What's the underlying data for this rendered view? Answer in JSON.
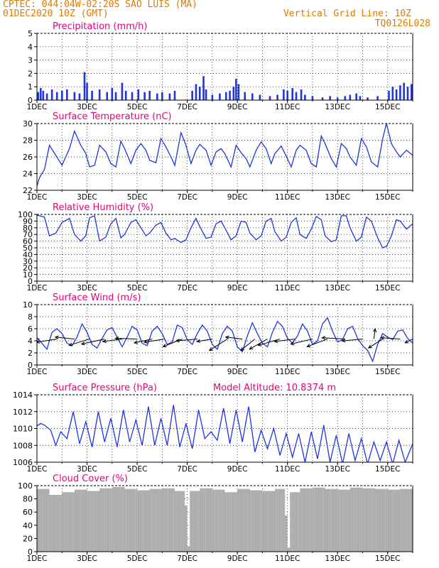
{
  "header": {
    "station_line": "CPTEC:   044:04W-02:20S   SAO LUIS (MA)",
    "date_line": "01DEC2020 10Z (GMT)",
    "grid_line": "Vertical Grid Line: 10Z",
    "code": "TQ0126L028"
  },
  "colors": {
    "header": "#e07b00",
    "title": "#e8007d",
    "line": "#1f35e0",
    "bar": "#1f35e0",
    "cloud": "#aaaaaa",
    "arrow": "#000000"
  },
  "chart_data": [
    {
      "type": "bar",
      "title": "Precipitation (mm/h)",
      "ylim": [
        0,
        5
      ],
      "yticks": [
        0,
        1,
        2,
        3,
        4,
        5
      ],
      "xticks": [
        "1DEC",
        "3DEC",
        "5DEC",
        "7DEC",
        "9DEC",
        "11DEC",
        "13DEC",
        "15DEC"
      ],
      "x_day_range": [
        1,
        16
      ],
      "grid": "dotted",
      "events": [
        {
          "day": 1.05,
          "value": 0.6
        },
        {
          "day": 1.15,
          "value": 0.9
        },
        {
          "day": 1.25,
          "value": 0.7
        },
        {
          "day": 1.4,
          "value": 0.5
        },
        {
          "day": 1.6,
          "value": 0.8
        },
        {
          "day": 1.8,
          "value": 0.6
        },
        {
          "day": 2.0,
          "value": 0.7
        },
        {
          "day": 2.2,
          "value": 0.8
        },
        {
          "day": 2.5,
          "value": 0.6
        },
        {
          "day": 2.7,
          "value": 0.5
        },
        {
          "day": 2.9,
          "value": 2.1
        },
        {
          "day": 3.0,
          "value": 1.3
        },
        {
          "day": 3.2,
          "value": 0.7
        },
        {
          "day": 3.5,
          "value": 0.8
        },
        {
          "day": 3.8,
          "value": 0.6
        },
        {
          "day": 4.0,
          "value": 0.9
        },
        {
          "day": 4.15,
          "value": 0.6
        },
        {
          "day": 4.4,
          "value": 1.3
        },
        {
          "day": 4.55,
          "value": 0.7
        },
        {
          "day": 4.8,
          "value": 0.6
        },
        {
          "day": 5.05,
          "value": 0.8
        },
        {
          "day": 5.3,
          "value": 0.6
        },
        {
          "day": 5.5,
          "value": 0.7
        },
        {
          "day": 5.8,
          "value": 0.5
        },
        {
          "day": 6.0,
          "value": 0.6
        },
        {
          "day": 6.3,
          "value": 0.5
        },
        {
          "day": 6.5,
          "value": 0.7
        },
        {
          "day": 7.2,
          "value": 0.7
        },
        {
          "day": 7.35,
          "value": 1.2
        },
        {
          "day": 7.5,
          "value": 1.0
        },
        {
          "day": 7.65,
          "value": 1.8
        },
        {
          "day": 7.75,
          "value": 0.8
        },
        {
          "day": 8.0,
          "value": 0.4
        },
        {
          "day": 8.3,
          "value": 0.5
        },
        {
          "day": 8.55,
          "value": 0.6
        },
        {
          "day": 8.7,
          "value": 0.7
        },
        {
          "day": 8.85,
          "value": 1.0
        },
        {
          "day": 8.95,
          "value": 1.6
        },
        {
          "day": 9.05,
          "value": 1.2
        },
        {
          "day": 9.3,
          "value": 0.6
        },
        {
          "day": 9.6,
          "value": 0.5
        },
        {
          "day": 9.9,
          "value": 0.4
        },
        {
          "day": 10.3,
          "value": 0.3
        },
        {
          "day": 10.6,
          "value": 0.4
        },
        {
          "day": 10.85,
          "value": 0.8
        },
        {
          "day": 11.0,
          "value": 0.7
        },
        {
          "day": 11.2,
          "value": 0.9
        },
        {
          "day": 11.35,
          "value": 0.6
        },
        {
          "day": 11.55,
          "value": 0.8
        },
        {
          "day": 11.7,
          "value": 0.4
        },
        {
          "day": 12.0,
          "value": 0.3
        },
        {
          "day": 12.4,
          "value": 0.2
        },
        {
          "day": 12.7,
          "value": 0.3
        },
        {
          "day": 13.0,
          "value": 0.2
        },
        {
          "day": 13.3,
          "value": 0.3
        },
        {
          "day": 13.5,
          "value": 0.4
        },
        {
          "day": 13.75,
          "value": 0.5
        },
        {
          "day": 13.9,
          "value": 0.3
        },
        {
          "day": 14.2,
          "value": 0.2
        },
        {
          "day": 14.6,
          "value": 0.3
        },
        {
          "day": 15.05,
          "value": 0.7
        },
        {
          "day": 15.2,
          "value": 1.0
        },
        {
          "day": 15.35,
          "value": 0.8
        },
        {
          "day": 15.5,
          "value": 1.1
        },
        {
          "day": 15.65,
          "value": 1.3
        },
        {
          "day": 15.8,
          "value": 1.0
        },
        {
          "day": 15.95,
          "value": 1.2
        }
      ]
    },
    {
      "type": "line",
      "title": "Surface Temperature (nC)",
      "ylim": [
        22,
        30
      ],
      "yticks": [
        22,
        24,
        26,
        28,
        30
      ],
      "xticks": [
        "1DEC",
        "3DEC",
        "5DEC",
        "7DEC",
        "9DEC",
        "11DEC",
        "13DEC",
        "15DEC"
      ],
      "x_day_range": [
        1,
        16
      ],
      "grid": "dotted",
      "days": [
        1.0,
        1.1,
        1.3,
        1.5,
        1.75,
        2.0,
        2.3,
        2.5,
        2.75,
        2.95,
        3.1,
        3.3,
        3.5,
        3.75,
        3.95,
        4.15,
        4.35,
        4.5,
        4.75,
        4.95,
        5.15,
        5.35,
        5.5,
        5.75,
        5.95,
        6.15,
        6.35,
        6.5,
        6.75,
        6.95,
        7.15,
        7.35,
        7.5,
        7.75,
        7.95,
        8.15,
        8.35,
        8.5,
        8.75,
        8.95,
        9.15,
        9.35,
        9.5,
        9.75,
        9.95,
        10.15,
        10.35,
        10.5,
        10.75,
        10.95,
        11.15,
        11.35,
        11.5,
        11.75,
        11.95,
        12.15,
        12.35,
        12.5,
        12.75,
        12.95,
        13.15,
        13.35,
        13.5,
        13.75,
        13.95,
        14.15,
        14.35,
        14.6,
        14.8,
        14.95,
        15.15,
        15.35,
        15.5,
        15.75,
        16.0
      ],
      "values": [
        22.5,
        23.5,
        24.5,
        27.4,
        26.2,
        25.0,
        27.0,
        29.1,
        27.4,
        26.4,
        24.8,
        25.0,
        27.4,
        26.6,
        25.2,
        24.8,
        27.9,
        27.0,
        25.2,
        26.8,
        27.6,
        26.8,
        25.6,
        25.3,
        28.2,
        27.2,
        26.0,
        25.0,
        28.9,
        27.4,
        25.2,
        26.8,
        27.5,
        26.8,
        25.0,
        26.6,
        27.0,
        26.4,
        24.8,
        27.4,
        26.5,
        25.8,
        24.8,
        26.8,
        27.8,
        27.0,
        25.2,
        26.4,
        27.3,
        26.1,
        24.8,
        26.8,
        27.4,
        26.8,
        25.2,
        24.8,
        28.5,
        27.6,
        25.8,
        24.8,
        27.6,
        27.0,
        26.0,
        25.0,
        28.2,
        27.2,
        25.4,
        24.8,
        28.2,
        30.0,
        27.6,
        26.6,
        26.0,
        26.8,
        26.2
      ]
    },
    {
      "type": "line",
      "title": "Relative Humidity (%)",
      "ylim": [
        0,
        100
      ],
      "yticks": [
        0,
        10,
        20,
        30,
        40,
        50,
        60,
        70,
        80,
        90,
        100
      ],
      "xticks": [
        "1DEC",
        "3DEC",
        "5DEC",
        "7DEC",
        "9DEC",
        "11DEC",
        "13DEC",
        "15DEC"
      ],
      "x_day_range": [
        1,
        16
      ],
      "grid": "dotted",
      "days": [
        1.0,
        1.3,
        1.5,
        1.75,
        2.0,
        2.3,
        2.5,
        2.75,
        2.95,
        3.1,
        3.3,
        3.5,
        3.75,
        3.95,
        4.15,
        4.35,
        4.5,
        4.75,
        4.95,
        5.15,
        5.35,
        5.5,
        5.75,
        5.95,
        6.15,
        6.35,
        6.5,
        6.75,
        6.95,
        7.15,
        7.35,
        7.5,
        7.75,
        7.95,
        8.15,
        8.35,
        8.5,
        8.75,
        8.95,
        9.15,
        9.35,
        9.5,
        9.75,
        9.95,
        10.15,
        10.35,
        10.5,
        10.75,
        10.95,
        11.15,
        11.35,
        11.5,
        11.75,
        11.95,
        12.15,
        12.35,
        12.5,
        12.75,
        12.95,
        13.15,
        13.35,
        13.5,
        13.75,
        13.95,
        14.15,
        14.35,
        14.6,
        14.8,
        14.95,
        15.15,
        15.35,
        15.5,
        15.75,
        16.0
      ],
      "values": [
        99,
        96,
        68,
        72,
        88,
        94,
        70,
        60,
        68,
        95,
        98,
        60,
        66,
        86,
        94,
        65,
        70,
        88,
        92,
        80,
        68,
        72,
        84,
        88,
        72,
        62,
        64,
        58,
        62,
        80,
        94,
        82,
        64,
        66,
        86,
        90,
        80,
        62,
        68,
        90,
        88,
        72,
        62,
        68,
        90,
        94,
        74,
        60,
        66,
        88,
        95,
        70,
        64,
        78,
        97,
        92,
        68,
        59,
        62,
        98,
        98,
        80,
        60,
        66,
        96,
        90,
        65,
        50,
        52,
        68,
        92,
        90,
        78,
        86
      ]
    },
    {
      "type": "line",
      "title": "Surface Wind (m/s)",
      "ylim": [
        0,
        10
      ],
      "yticks": [
        0,
        2,
        4,
        6,
        8,
        10
      ],
      "xticks": [
        "1DEC",
        "3DEC",
        "5DEC",
        "7DEC",
        "9DEC",
        "11DEC",
        "13DEC",
        "15DEC"
      ],
      "x_day_range": [
        1,
        16
      ],
      "grid": "dotted",
      "days": [
        1.0,
        1.2,
        1.4,
        1.6,
        1.8,
        2.0,
        2.2,
        2.4,
        2.6,
        2.8,
        3.0,
        3.2,
        3.4,
        3.6,
        3.8,
        4.0,
        4.2,
        4.4,
        4.6,
        4.8,
        5.0,
        5.2,
        5.4,
        5.6,
        5.8,
        6.0,
        6.2,
        6.4,
        6.6,
        6.8,
        7.0,
        7.2,
        7.4,
        7.6,
        7.8,
        8.0,
        8.2,
        8.4,
        8.6,
        8.8,
        9.0,
        9.2,
        9.4,
        9.6,
        9.8,
        10.0,
        10.2,
        10.4,
        10.6,
        10.8,
        11.0,
        11.2,
        11.4,
        11.6,
        11.8,
        12.0,
        12.2,
        12.4,
        12.6,
        12.8,
        13.0,
        13.2,
        13.4,
        13.6,
        13.8,
        14.0,
        14.2,
        14.4,
        14.6,
        14.8,
        15.0,
        15.2,
        15.4,
        15.6,
        15.8,
        16.0
      ],
      "values": [
        4.5,
        3.6,
        2.6,
        5.4,
        6.0,
        5.2,
        3.6,
        3.2,
        4.6,
        6.8,
        5.4,
        3.4,
        2.8,
        4.4,
        5.8,
        6.2,
        4.6,
        3.0,
        4.6,
        6.4,
        5.8,
        3.6,
        3.2,
        5.6,
        6.4,
        5.2,
        3.4,
        3.8,
        6.6,
        6.2,
        4.2,
        3.4,
        5.2,
        6.6,
        5.6,
        3.4,
        2.6,
        5.2,
        6.4,
        5.6,
        3.0,
        2.2,
        4.8,
        7.0,
        5.2,
        3.6,
        3.0,
        5.4,
        7.2,
        6.4,
        4.4,
        3.6,
        4.8,
        6.8,
        5.6,
        3.4,
        4.0,
        6.8,
        7.8,
        5.6,
        3.8,
        4.2,
        6.0,
        6.4,
        4.4,
        3.2,
        2.4,
        0.6,
        3.4,
        5.2,
        4.6,
        4.2,
        5.6,
        5.8,
        4.4,
        3.6
      ],
      "vectors": [
        {
          "day": 1.1,
          "u": -3.5,
          "v": 0.2
        },
        {
          "day": 1.8,
          "u": -3.2,
          "v": -0.5
        },
        {
          "day": 2.5,
          "u": -3.0,
          "v": 0.3
        },
        {
          "day": 3.1,
          "u": -3.2,
          "v": -1.0
        },
        {
          "day": 3.7,
          "u": -3.6,
          "v": -0.8
        },
        {
          "day": 4.4,
          "u": -3.0,
          "v": -0.4
        },
        {
          "day": 5.0,
          "u": -3.4,
          "v": 0.1
        },
        {
          "day": 5.6,
          "u": -2.8,
          "v": -0.6
        },
        {
          "day": 6.1,
          "u": -3.2,
          "v": -0.5
        },
        {
          "day": 6.8,
          "u": -3.0,
          "v": -1.2
        },
        {
          "day": 7.4,
          "u": -3.3,
          "v": -0.3
        },
        {
          "day": 8.0,
          "u": -2.4,
          "v": -0.4
        },
        {
          "day": 8.6,
          "u": -2.8,
          "v": -1.8
        },
        {
          "day": 9.2,
          "u": -2.6,
          "v": 0.3
        },
        {
          "day": 9.7,
          "u": -2.2,
          "v": -1.8
        },
        {
          "day": 10.2,
          "u": -2.8,
          "v": -1.6
        },
        {
          "day": 10.7,
          "u": -3.4,
          "v": -1.0
        },
        {
          "day": 11.3,
          "u": -3.2,
          "v": -0.4
        },
        {
          "day": 12.0,
          "u": -3.4,
          "v": -0.8
        },
        {
          "day": 12.6,
          "u": -3.2,
          "v": -1.2
        },
        {
          "day": 13.3,
          "u": -3.6,
          "v": 0.2
        },
        {
          "day": 14.0,
          "u": -3.2,
          "v": -0.3
        },
        {
          "day": 14.45,
          "u": 0.2,
          "v": 1.6
        },
        {
          "day": 14.8,
          "u": -2.2,
          "v": -1.4
        },
        {
          "day": 15.5,
          "u": -3.0,
          "v": 0.2
        },
        {
          "day": 16.0,
          "u": -1.2,
          "v": -0.6
        }
      ]
    },
    {
      "type": "line",
      "title": "Surface Pressure (hPa)",
      "annotation": "Model Altitude: 10.8374 m",
      "ylim": [
        1006,
        1014
      ],
      "yticks": [
        1006,
        1008,
        1010,
        1012,
        1014
      ],
      "xticks": [
        "1DEC",
        "3DEC",
        "5DEC",
        "7DEC",
        "9DEC",
        "11DEC",
        "13DEC",
        "15DEC"
      ],
      "x_day_range": [
        1,
        16
      ],
      "grid": "dotted",
      "days": [
        1.0,
        1.15,
        1.3,
        1.55,
        1.75,
        1.95,
        2.2,
        2.45,
        2.7,
        2.95,
        3.2,
        3.45,
        3.7,
        3.95,
        4.2,
        4.45,
        4.7,
        4.95,
        5.2,
        5.45,
        5.7,
        5.95,
        6.2,
        6.45,
        6.7,
        6.95,
        7.2,
        7.45,
        7.7,
        7.95,
        8.2,
        8.45,
        8.7,
        8.95,
        9.2,
        9.45,
        9.7,
        9.95,
        10.2,
        10.45,
        10.7,
        10.95,
        11.2,
        11.45,
        11.7,
        11.95,
        12.2,
        12.45,
        12.7,
        12.95,
        13.2,
        13.45,
        13.7,
        13.95,
        14.2,
        14.45,
        14.7,
        14.95,
        15.2,
        15.45,
        15.7,
        16.0
      ],
      "values": [
        1010.3,
        1010.6,
        1010.4,
        1009.8,
        1008.0,
        1009.6,
        1008.8,
        1012.0,
        1008.2,
        1010.8,
        1007.8,
        1012.0,
        1008.4,
        1011.2,
        1007.8,
        1012.2,
        1008.4,
        1011.0,
        1008.0,
        1012.6,
        1008.0,
        1011.2,
        1008.0,
        1012.8,
        1007.8,
        1010.6,
        1007.6,
        1012.2,
        1008.8,
        1009.6,
        1008.6,
        1012.4,
        1008.2,
        1012.2,
        1008.4,
        1012.6,
        1007.2,
        1009.8,
        1007.6,
        1010.0,
        1006.8,
        1009.4,
        1006.6,
        1009.4,
        1006.0,
        1009.6,
        1006.4,
        1010.4,
        1006.0,
        1009.2,
        1005.8,
        1009.4,
        1006.2,
        1008.8,
        1005.8,
        1008.4,
        1006.2,
        1008.4,
        1005.8,
        1008.6,
        1006.0,
        1008.2
      ]
    },
    {
      "type": "bar",
      "title": "Cloud Cover (%)",
      "ylim": [
        0,
        100
      ],
      "yticks": [
        0,
        20,
        40,
        60,
        80,
        100
      ],
      "xticks": [
        "1DEC",
        "3DEC",
        "5DEC",
        "7DEC",
        "9DEC",
        "11DEC",
        "13DEC",
        "15DEC"
      ],
      "x_day_range": [
        1,
        16
      ],
      "grid": "dotted",
      "days": [
        1.0,
        1.5,
        2.0,
        2.5,
        3.0,
        3.5,
        4.0,
        4.5,
        5.0,
        5.5,
        6.0,
        6.5,
        6.9,
        7.0,
        7.1,
        7.5,
        8.0,
        8.5,
        9.0,
        9.5,
        10.0,
        10.5,
        10.9,
        11.0,
        11.1,
        11.5,
        12.0,
        12.5,
        13.0,
        13.5,
        14.0,
        14.5,
        15.0,
        15.5,
        16.0
      ],
      "values": [
        95,
        86,
        90,
        94,
        92,
        96,
        98,
        95,
        93,
        95,
        96,
        92,
        70,
        8,
        92,
        96,
        94,
        90,
        95,
        93,
        92,
        95,
        55,
        6,
        90,
        96,
        97,
        95,
        94,
        97,
        96,
        95,
        94,
        95,
        96
      ]
    }
  ]
}
